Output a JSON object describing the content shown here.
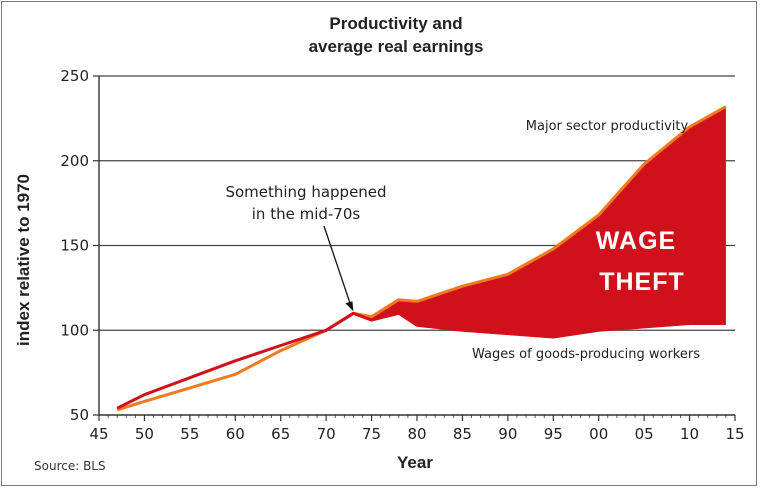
{
  "chart_data": {
    "type": "area",
    "title": "Productivity and average real earnings",
    "title_lines": [
      "Productivity and",
      "average real earnings"
    ],
    "xlabel": "Year",
    "ylabel": "index relative to 1970",
    "xlim": [
      1945,
      2015
    ],
    "ylim": [
      50,
      250
    ],
    "x_ticks": [
      1945,
      1950,
      1955,
      1960,
      1965,
      1970,
      1975,
      1980,
      1985,
      1990,
      1995,
      2000,
      2005,
      2010,
      2015
    ],
    "x_tick_labels": [
      "45",
      "50",
      "55",
      "60",
      "65",
      "70",
      "75",
      "80",
      "85",
      "90",
      "95",
      "00",
      "05",
      "10",
      "15"
    ],
    "y_ticks": [
      50,
      100,
      150,
      200,
      250
    ],
    "y_tick_labels": [
      "50",
      "100",
      "150",
      "200",
      "250"
    ],
    "grid": "horizontal",
    "x": [
      1947,
      1950,
      1955,
      1960,
      1965,
      1970,
      1973,
      1975,
      1978,
      1980,
      1985,
      1990,
      1995,
      2000,
      2005,
      2010,
      2014
    ],
    "series": [
      {
        "name": "Major sector productivity",
        "color": "#f07a1c",
        "values": [
          53,
          58,
          66,
          74,
          88,
          100,
          110,
          108,
          118,
          117,
          126,
          133,
          148,
          168,
          198,
          220,
          232
        ]
      },
      {
        "name": "Wages of goods-producing workers",
        "color": "#d0101a",
        "values": [
          54,
          62,
          72,
          82,
          91,
          100,
          110,
          106,
          110,
          103,
          100,
          98,
          96,
          100,
          102,
          104,
          104
        ]
      }
    ],
    "annotations": [
      {
        "text_lines": [
          "Something happened",
          "in the mid-70s"
        ],
        "x": 1973,
        "y": 110
      },
      {
        "text_lines": [
          "WAGE",
          "THEFT"
        ]
      }
    ],
    "source": "Source: BLS"
  },
  "colors": {
    "productivity": "#f07a1c",
    "wages": "#d0101a",
    "gap_fill": "#d0101a",
    "grid": "#444444"
  }
}
